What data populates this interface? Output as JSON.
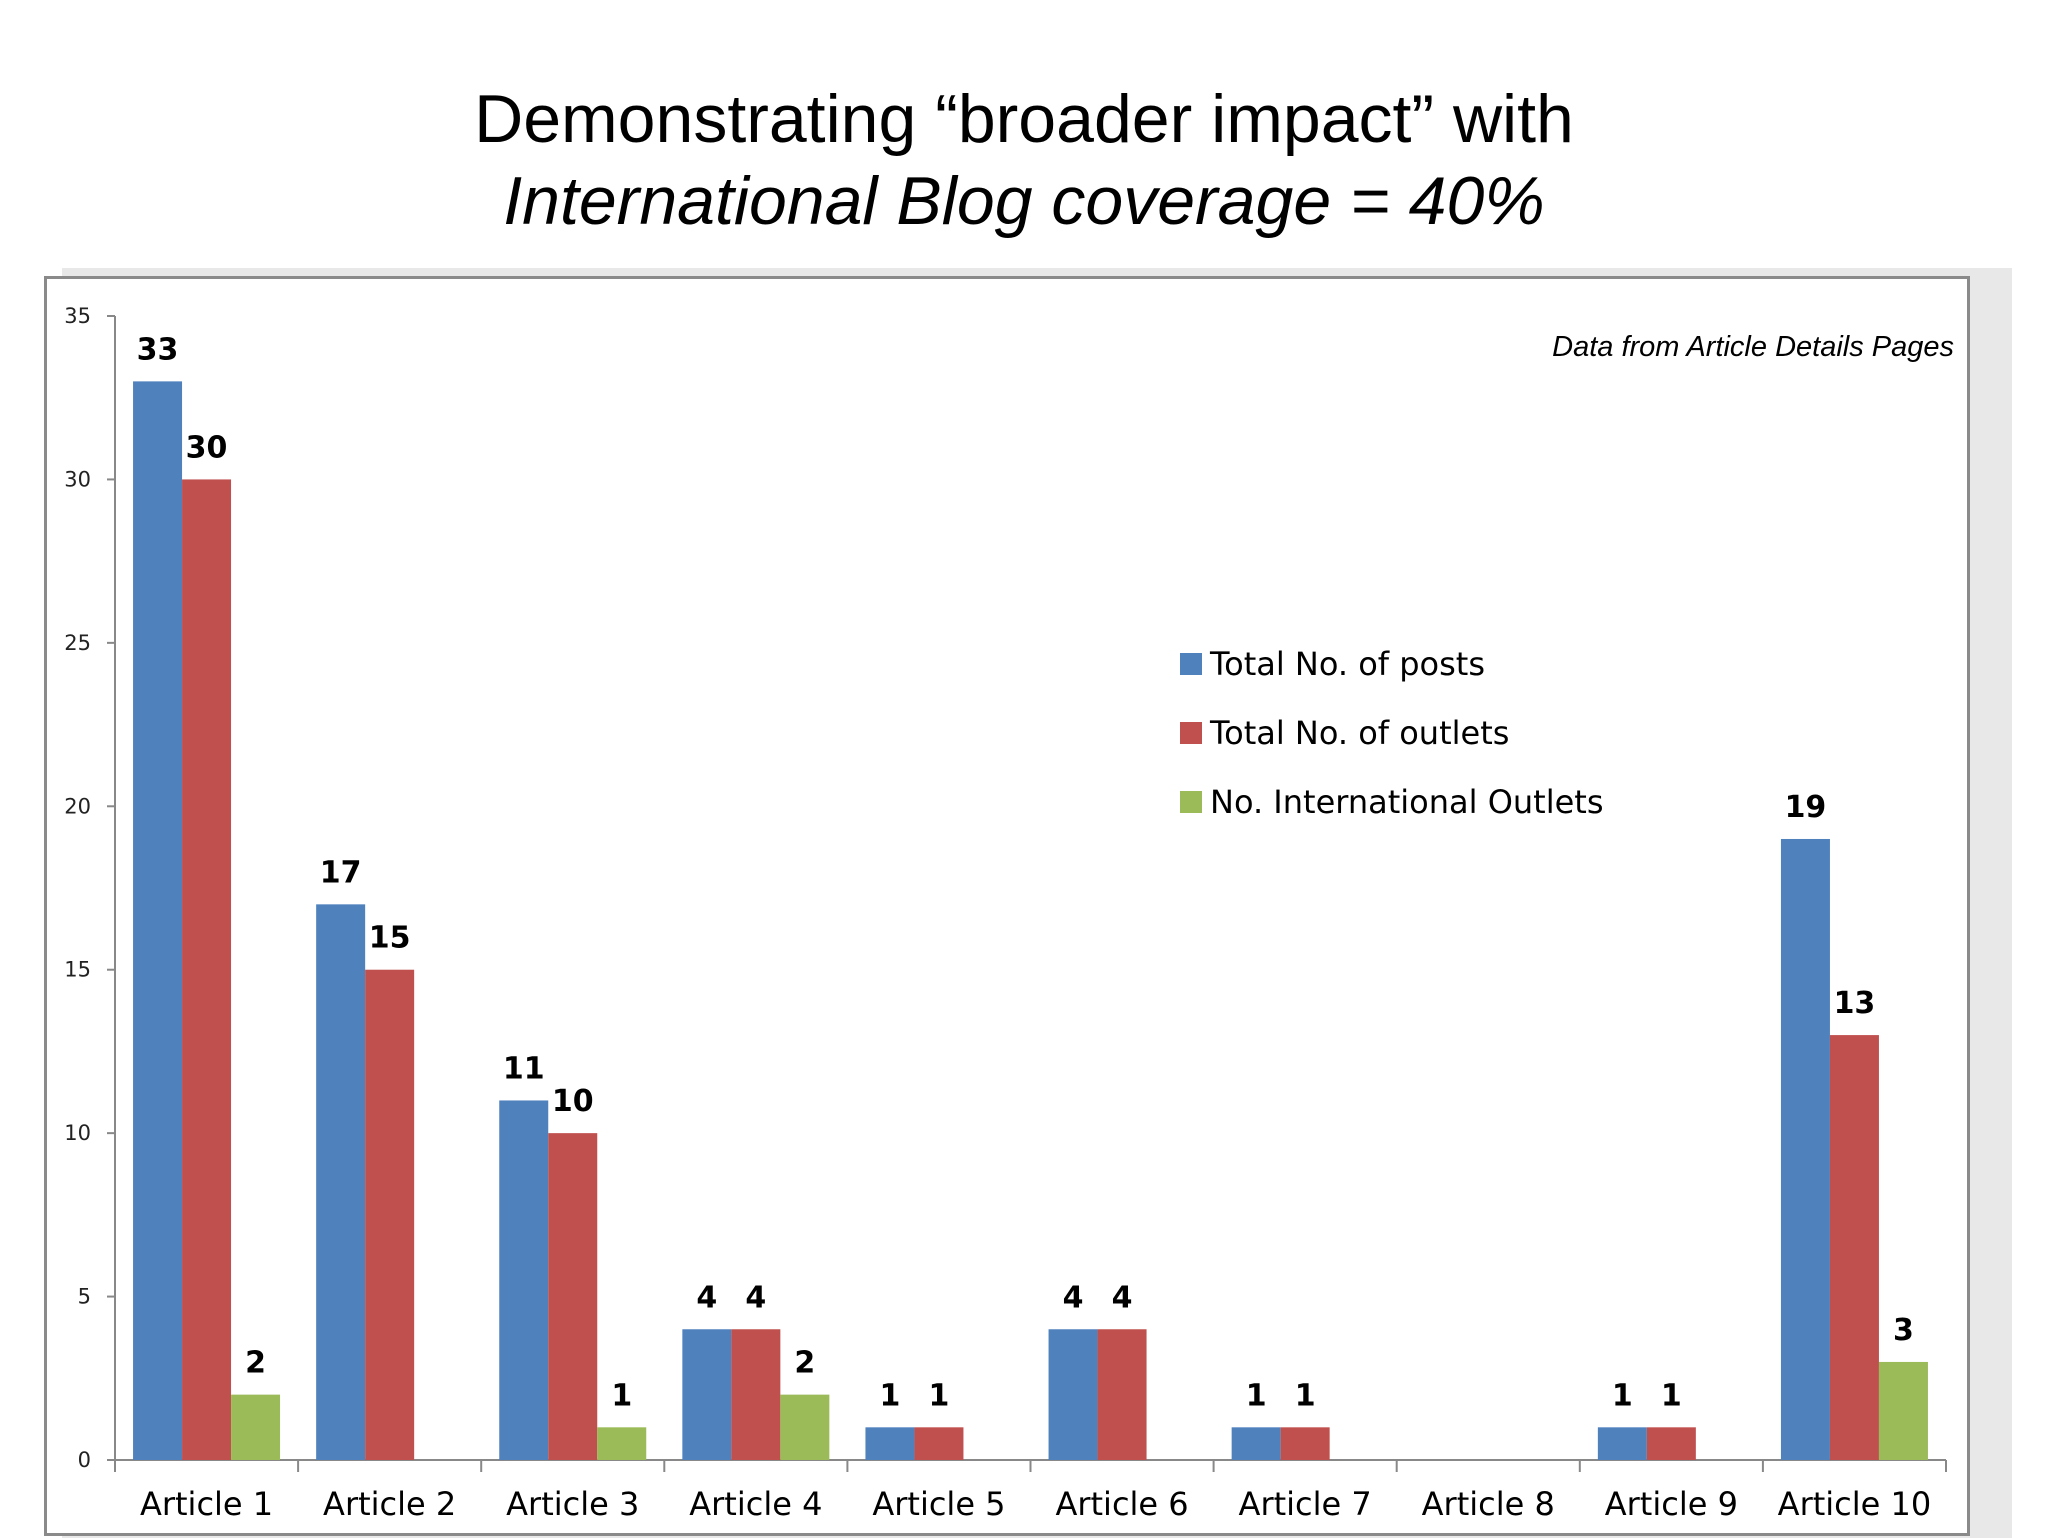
{
  "title": {
    "line1": "Demonstrating “broader impact” with",
    "line2": "International Blog coverage = 40%"
  },
  "chart_data": {
    "type": "bar",
    "annotation": "Data from Article Details Pages",
    "categories": [
      "Article 1",
      "Article 2",
      "Article 3",
      "Article 4",
      "Article 5",
      "Article 6",
      "Article 7",
      "Article 8",
      "Article 9",
      "Article 10"
    ],
    "series": [
      {
        "name": "Total No. of posts",
        "color": "#4f81bd",
        "values": [
          33,
          17,
          11,
          4,
          1,
          4,
          1,
          null,
          1,
          19
        ]
      },
      {
        "name": "Total No. of outlets",
        "color": "#c0504d",
        "values": [
          30,
          15,
          10,
          4,
          1,
          4,
          1,
          null,
          1,
          13
        ]
      },
      {
        "name": "No. International Outlets",
        "color": "#9bbb59",
        "values": [
          2,
          null,
          1,
          2,
          null,
          null,
          null,
          null,
          null,
          3
        ]
      }
    ],
    "ylim": [
      0,
      35
    ],
    "yticks": [
      0,
      5,
      10,
      15,
      20,
      25,
      30,
      35
    ],
    "legend_position": "right-middle",
    "grid": false
  }
}
